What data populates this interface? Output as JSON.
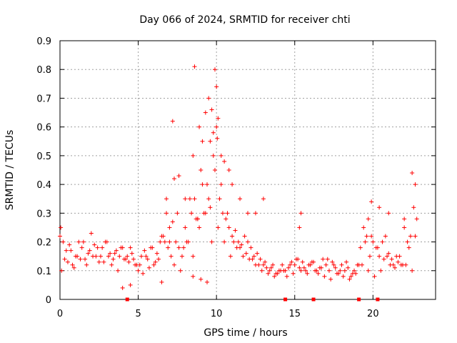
{
  "chart_data": {
    "type": "scatter",
    "title": "Day 066 of 2024, SRMTID for receiver chti",
    "xlabel": "GPS time / hours",
    "ylabel": "SRMTID / TECUs",
    "xlim": [
      0,
      24
    ],
    "ylim": [
      0,
      0.9
    ],
    "xticks": [
      0,
      5,
      10,
      15,
      20
    ],
    "xtick_labels": [
      "0",
      "5",
      "10",
      "15",
      "20"
    ],
    "yticks": [
      0,
      0.1,
      0.2,
      0.3,
      0.4,
      0.5,
      0.6,
      0.7,
      0.8,
      0.9
    ],
    "ytick_labels": [
      "0",
      "0.1",
      "0.2",
      "0.3",
      "0.4",
      "0.5",
      "0.6",
      "0.7",
      "0.8",
      "0.9"
    ],
    "grid": true,
    "marker": "+",
    "color": "#ff0000",
    "gap_markers_x": [
      4.3,
      14.4,
      16.2,
      19.1,
      20.3
    ],
    "series": [
      {
        "name": "SRMTID",
        "x": [
          0.0,
          0.2,
          0.4,
          0.6,
          0.8,
          1.0,
          1.2,
          1.4,
          1.6,
          1.8,
          2.0,
          2.2,
          2.4,
          2.6,
          2.8,
          3.0,
          3.2,
          3.4,
          3.6,
          3.8,
          4.0,
          4.2,
          4.4,
          4.6,
          4.8,
          5.0,
          5.2,
          5.4,
          5.6,
          5.8,
          6.0,
          6.2,
          6.4,
          6.6,
          6.8,
          7.0,
          7.2,
          7.4,
          7.6,
          7.8,
          8.0,
          8.2,
          8.4,
          8.6,
          8.8,
          9.0,
          9.2,
          9.4,
          9.6,
          9.8,
          10.0,
          10.2,
          10.4,
          10.6,
          10.8,
          11.0,
          11.2,
          11.4,
          11.6,
          11.8,
          12.0,
          12.2,
          12.4,
          12.6,
          12.8,
          13.0,
          13.2,
          13.4,
          13.6,
          13.8,
          14.0,
          14.2,
          14.4,
          14.6,
          14.8,
          15.0,
          15.2,
          15.4,
          15.6,
          15.8,
          16.0,
          16.2,
          16.4,
          16.6,
          16.8,
          17.0,
          17.2,
          17.4,
          17.6,
          17.8,
          18.0,
          18.2,
          18.4,
          18.6,
          18.8,
          19.0,
          19.2,
          19.4,
          19.6,
          19.8,
          20.0,
          20.2,
          20.4,
          20.6,
          20.8,
          21.0,
          21.2,
          21.4,
          21.6,
          21.8,
          22.0,
          22.2,
          22.4,
          22.6,
          22.8,
          0.1,
          0.5,
          0.9,
          1.3,
          1.7,
          2.1,
          2.5,
          2.9,
          3.3,
          3.7,
          4.1,
          4.5,
          4.9,
          5.3,
          5.7,
          6.1,
          6.5,
          6.9,
          7.3,
          7.7,
          8.1,
          8.5,
          8.9,
          9.3,
          9.7,
          10.1,
          10.5,
          10.9,
          11.3,
          11.7,
          12.1,
          12.5,
          12.9,
          13.3,
          13.7,
          14.1,
          14.5,
          14.9,
          15.3,
          15.7,
          16.1,
          16.5,
          16.9,
          17.3,
          17.7,
          18.1,
          18.5,
          18.9,
          19.3,
          19.7,
          20.1,
          20.5,
          20.9,
          21.3,
          21.7,
          22.1,
          22.5,
          0.3,
          0.7,
          1.1,
          1.5,
          1.9,
          2.3,
          2.7,
          3.1,
          3.5,
          3.9,
          4.3,
          4.7,
          5.1,
          5.5,
          5.9,
          6.3,
          6.7,
          7.1,
          7.5,
          7.9,
          8.3,
          8.7,
          9.1,
          9.5,
          9.9,
          10.3,
          10.7,
          11.1,
          11.5,
          11.9,
          12.3,
          12.7,
          13.1,
          13.5,
          13.9,
          14.3,
          14.7,
          15.1,
          15.5,
          15.9,
          16.3,
          16.7,
          17.1,
          17.5,
          17.9,
          18.3,
          18.7,
          19.1,
          19.5,
          19.9,
          20.3,
          20.7,
          21.1,
          21.5,
          21.9,
          22.3,
          22.7,
          7.0,
          7.3,
          7.6,
          8.0,
          8.5,
          8.9,
          9.1,
          9.3,
          9.5,
          9.7,
          9.9,
          10.0,
          10.1,
          10.3,
          10.5,
          10.8,
          11.0,
          11.5,
          12.0,
          12.5,
          13.0,
          15.3,
          15.4,
          19.7,
          19.9,
          20.4,
          21.0,
          22.0,
          22.5,
          22.7,
          6.8,
          8.8,
          9.6,
          10.05,
          9.8,
          8.6,
          7.2,
          0.05,
          4.0,
          4.5,
          6.5,
          8.5,
          9.0,
          9.4
        ],
        "y": [
          0.22,
          0.2,
          0.17,
          0.19,
          0.12,
          0.15,
          0.2,
          0.18,
          0.14,
          0.16,
          0.23,
          0.19,
          0.18,
          0.15,
          0.13,
          0.2,
          0.16,
          0.14,
          0.17,
          0.15,
          0.18,
          0.14,
          0.13,
          0.16,
          0.12,
          0.1,
          0.15,
          0.17,
          0.14,
          0.18,
          0.12,
          0.16,
          0.2,
          0.22,
          0.3,
          0.25,
          0.27,
          0.2,
          0.18,
          0.15,
          0.25,
          0.2,
          0.3,
          0.35,
          0.28,
          0.45,
          0.3,
          0.4,
          0.55,
          0.5,
          0.6,
          0.35,
          0.3,
          0.28,
          0.25,
          0.22,
          0.24,
          0.2,
          0.19,
          0.22,
          0.2,
          0.18,
          0.15,
          0.16,
          0.14,
          0.12,
          0.11,
          0.1,
          0.12,
          0.09,
          0.1,
          0.12,
          0.1,
          0.11,
          0.13,
          0.12,
          0.14,
          0.1,
          0.11,
          0.09,
          0.12,
          0.13,
          0.1,
          0.11,
          0.14,
          0.12,
          0.1,
          0.13,
          0.11,
          0.09,
          0.12,
          0.1,
          0.11,
          0.08,
          0.1,
          0.12,
          0.18,
          0.25,
          0.22,
          0.15,
          0.2,
          0.18,
          0.15,
          0.2,
          0.22,
          0.16,
          0.14,
          0.11,
          0.13,
          0.12,
          0.25,
          0.2,
          0.22,
          0.32,
          0.28,
          0.1,
          0.13,
          0.11,
          0.14,
          0.12,
          0.15,
          0.13,
          0.2,
          0.12,
          0.1,
          0.14,
          0.18,
          0.12,
          0.09,
          0.11,
          0.13,
          0.22,
          0.18,
          0.12,
          0.1,
          0.2,
          0.15,
          0.25,
          0.3,
          0.2,
          0.25,
          0.2,
          0.15,
          0.18,
          0.15,
          0.14,
          0.12,
          0.1,
          0.09,
          0.08,
          0.1,
          0.08,
          0.09,
          0.11,
          0.1,
          0.13,
          0.09,
          0.08,
          0.07,
          0.09,
          0.08,
          0.07,
          0.09,
          0.12,
          0.1,
          0.08,
          0.1,
          0.15,
          0.12,
          0.15,
          0.12,
          0.1,
          0.14,
          0.17,
          0.15,
          0.2,
          0.17,
          0.15,
          0.18,
          0.15,
          0.16,
          0.18,
          0.15,
          0.14,
          0.12,
          0.15,
          0.18,
          0.14,
          0.2,
          0.15,
          0.3,
          0.18,
          0.35,
          0.28,
          0.4,
          0.35,
          0.45,
          0.4,
          0.3,
          0.2,
          0.18,
          0.16,
          0.14,
          0.12,
          0.13,
          0.11,
          0.09,
          0.1,
          0.12,
          0.14,
          0.13,
          0.12,
          0.1,
          0.11,
          0.14,
          0.12,
          0.1,
          0.13,
          0.09,
          0.12,
          0.2,
          0.22,
          0.18,
          0.14,
          0.12,
          0.15,
          0.12,
          0.18,
          0.22,
          0.2,
          0.42,
          0.43,
          0.35,
          0.5,
          0.6,
          0.55,
          0.65,
          0.7,
          0.66,
          0.8,
          0.74,
          0.63,
          0.5,
          0.48,
          0.45,
          0.4,
          0.35,
          0.3,
          0.3,
          0.35,
          0.25,
          0.3,
          0.28,
          0.34,
          0.32,
          0.3,
          0.28,
          0.44,
          0.4,
          0.35,
          0.28,
          0.32,
          0.56,
          0.58,
          0.81,
          0.62,
          0.25,
          0.04,
          0.05,
          0.06,
          0.08,
          0.07,
          0.06
        ],
        "x_extra_note": ""
      }
    ]
  }
}
